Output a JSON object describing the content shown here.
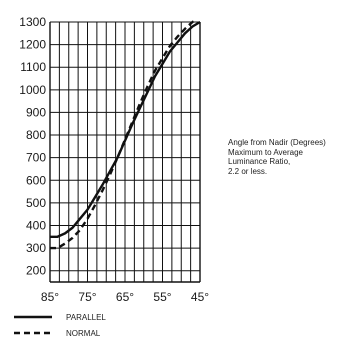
{
  "chart_data": {
    "type": "line",
    "title": "",
    "xlabel": "",
    "ylabel": "",
    "x_ticks": [
      "85°",
      "75°",
      "65°",
      "55°",
      "45°"
    ],
    "x_tick_values": [
      85,
      75,
      65,
      55,
      45
    ],
    "xlim": [
      85,
      45
    ],
    "y_ticks": [
      200,
      300,
      400,
      500,
      600,
      700,
      800,
      900,
      1000,
      1100,
      1200,
      1300
    ],
    "ylim": [
      150,
      1300
    ],
    "grid": true,
    "legend_position": "bottom-left",
    "annotation": [
      "Angle from Nadir (Degrees)",
      "Maximum to Average",
      "Luminance Ratio,",
      "2.2 or less."
    ],
    "series": [
      {
        "name": "PARALLEL",
        "style": "solid",
        "x": [
          85,
          83,
          81,
          79,
          77,
          75,
          73,
          71,
          69,
          67,
          65,
          63,
          61,
          59,
          57,
          55,
          53,
          51,
          49,
          47,
          45
        ],
        "y": [
          350,
          350,
          365,
          390,
          430,
          470,
          525,
          580,
          640,
          700,
          775,
          850,
          920,
          990,
          1060,
          1115,
          1170,
          1210,
          1250,
          1280,
          1300
        ]
      },
      {
        "name": "NORMAL",
        "style": "dashed",
        "x": [
          85,
          83,
          81,
          79,
          77,
          75,
          73,
          71,
          69,
          67,
          65,
          63,
          61,
          59,
          57,
          55,
          53,
          51,
          49,
          47,
          46
        ],
        "y": [
          300,
          300,
          320,
          345,
          380,
          430,
          490,
          555,
          625,
          700,
          780,
          860,
          940,
          1015,
          1085,
          1140,
          1195,
          1235,
          1270,
          1300,
          1310
        ]
      }
    ]
  }
}
